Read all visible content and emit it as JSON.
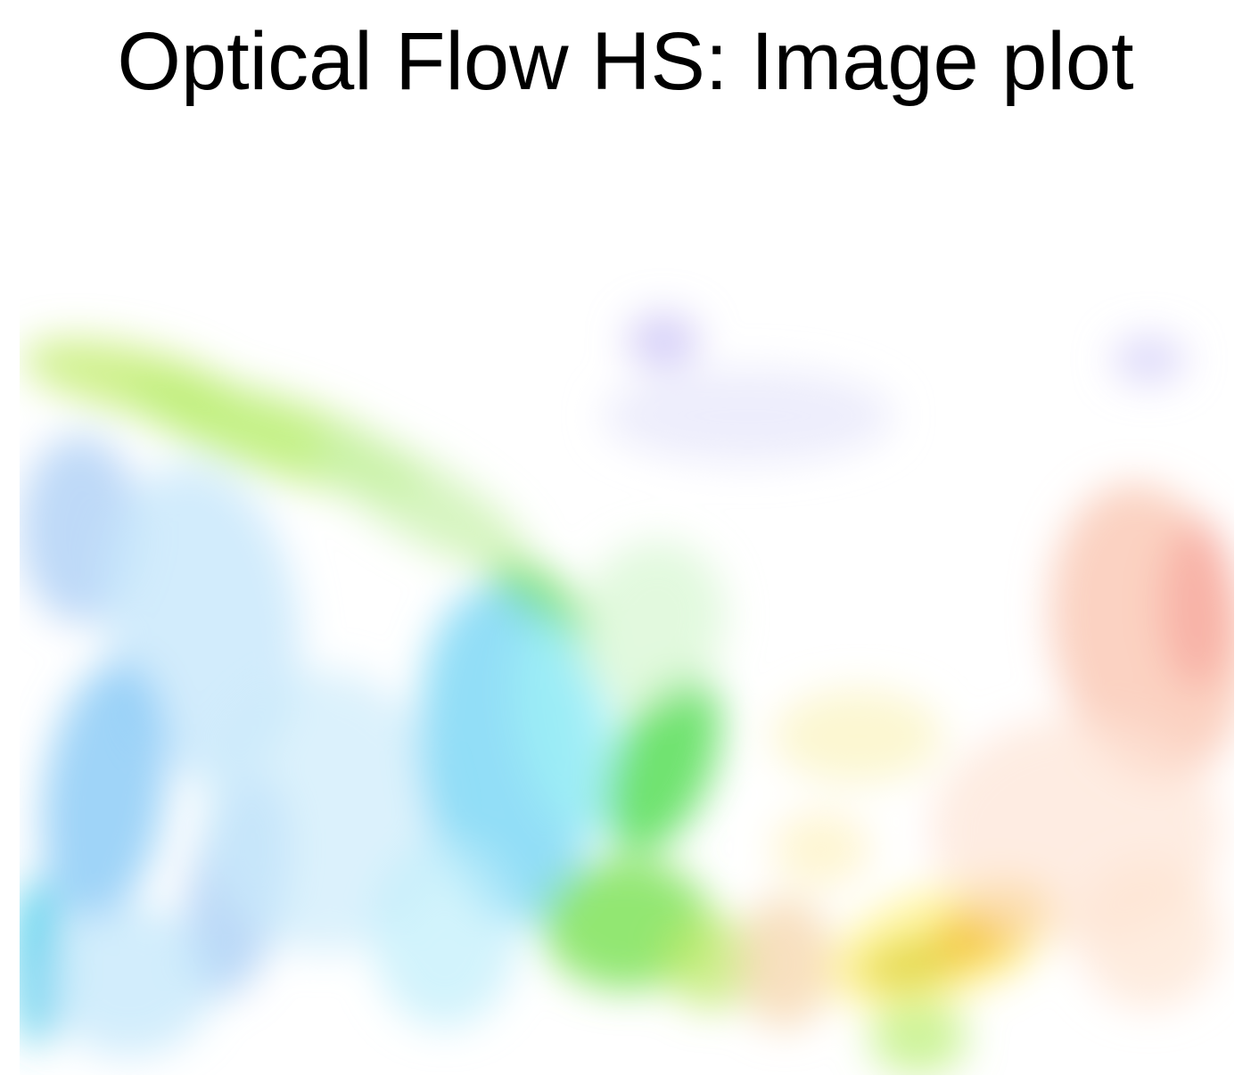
{
  "chart_data": {
    "type": "heatmap",
    "title": "Optical Flow HS: Image plot",
    "xlabel": "",
    "ylabel": "",
    "colormap": "flow-color-wheel",
    "axes_visible": false,
    "grid": false,
    "blobs": [
      {
        "cx": 0.09,
        "cy": 0.26,
        "rx": 0.09,
        "ry": 0.035,
        "color": "#c8ef7a",
        "opacity": 0.85,
        "angle": 12
      },
      {
        "cx": 0.21,
        "cy": 0.32,
        "rx": 0.13,
        "ry": 0.04,
        "color": "#bff07a",
        "opacity": 0.9,
        "angle": 18
      },
      {
        "cx": 0.33,
        "cy": 0.39,
        "rx": 0.1,
        "ry": 0.04,
        "color": "#ccf3b0",
        "opacity": 0.8,
        "angle": 30
      },
      {
        "cx": 0.43,
        "cy": 0.5,
        "rx": 0.05,
        "ry": 0.03,
        "color": "#78e060",
        "opacity": 0.9,
        "angle": 40
      },
      {
        "cx": 0.05,
        "cy": 0.42,
        "rx": 0.05,
        "ry": 0.1,
        "color": "#a8ccf6",
        "opacity": 0.75,
        "angle": 0
      },
      {
        "cx": 0.15,
        "cy": 0.52,
        "rx": 0.08,
        "ry": 0.17,
        "color": "#c7e7fb",
        "opacity": 0.8,
        "angle": -8
      },
      {
        "cx": 0.07,
        "cy": 0.7,
        "rx": 0.05,
        "ry": 0.14,
        "color": "#7ec6f5",
        "opacity": 0.75,
        "angle": 8
      },
      {
        "cx": 0.18,
        "cy": 0.8,
        "rx": 0.04,
        "ry": 0.12,
        "color": "#9ec7f4",
        "opacity": 0.7,
        "angle": 12
      },
      {
        "cx": 0.25,
        "cy": 0.72,
        "rx": 0.1,
        "ry": 0.15,
        "color": "#ccebfb",
        "opacity": 0.7,
        "angle": 0
      },
      {
        "cx": 0.015,
        "cy": 0.88,
        "rx": 0.02,
        "ry": 0.09,
        "color": "#38c8ea",
        "opacity": 0.8,
        "angle": 0
      },
      {
        "cx": 0.09,
        "cy": 0.9,
        "rx": 0.07,
        "ry": 0.08,
        "color": "#bfe6fb",
        "opacity": 0.7,
        "angle": 0
      },
      {
        "cx": 0.4,
        "cy": 0.66,
        "rx": 0.07,
        "ry": 0.18,
        "color": "#7fd8f6",
        "opacity": 0.85,
        "angle": -6
      },
      {
        "cx": 0.45,
        "cy": 0.63,
        "rx": 0.04,
        "ry": 0.12,
        "color": "#9ff0f6",
        "opacity": 0.8,
        "angle": -12
      },
      {
        "cx": 0.35,
        "cy": 0.85,
        "rx": 0.06,
        "ry": 0.1,
        "color": "#bfeefb",
        "opacity": 0.7,
        "angle": 0
      },
      {
        "cx": 0.53,
        "cy": 0.67,
        "rx": 0.04,
        "ry": 0.1,
        "color": "#60e060",
        "opacity": 0.9,
        "angle": 22
      },
      {
        "cx": 0.5,
        "cy": 0.84,
        "rx": 0.07,
        "ry": 0.07,
        "color": "#7fe35a",
        "opacity": 0.85,
        "angle": 0
      },
      {
        "cx": 0.57,
        "cy": 0.88,
        "rx": 0.04,
        "ry": 0.05,
        "color": "#bfe96a",
        "opacity": 0.75,
        "angle": 0
      },
      {
        "cx": 0.52,
        "cy": 0.52,
        "rx": 0.06,
        "ry": 0.09,
        "color": "#d6f6d0",
        "opacity": 0.7,
        "angle": 20
      },
      {
        "cx": 0.69,
        "cy": 0.64,
        "rx": 0.07,
        "ry": 0.05,
        "color": "#fbf5c6",
        "opacity": 0.8,
        "angle": 0
      },
      {
        "cx": 0.63,
        "cy": 0.88,
        "rx": 0.04,
        "ry": 0.07,
        "color": "#f6d8b0",
        "opacity": 0.8,
        "angle": 0
      },
      {
        "cx": 0.74,
        "cy": 0.88,
        "rx": 0.05,
        "ry": 0.025,
        "color": "#b8b016",
        "opacity": 0.95,
        "angle": -12
      },
      {
        "cx": 0.8,
        "cy": 0.84,
        "rx": 0.05,
        "ry": 0.035,
        "color": "#e98a12",
        "opacity": 0.9,
        "angle": -30
      },
      {
        "cx": 0.76,
        "cy": 0.86,
        "rx": 0.1,
        "ry": 0.06,
        "color": "#fff06a",
        "opacity": 0.6,
        "angle": -18
      },
      {
        "cx": 0.74,
        "cy": 0.96,
        "rx": 0.04,
        "ry": 0.04,
        "color": "#b8ef70",
        "opacity": 0.7,
        "angle": 0
      },
      {
        "cx": 0.93,
        "cy": 0.53,
        "rx": 0.08,
        "ry": 0.16,
        "color": "#f9c3ae",
        "opacity": 0.75,
        "angle": -10
      },
      {
        "cx": 0.97,
        "cy": 0.5,
        "rx": 0.03,
        "ry": 0.09,
        "color": "#f7a59a",
        "opacity": 0.7,
        "angle": 0
      },
      {
        "cx": 0.87,
        "cy": 0.74,
        "rx": 0.12,
        "ry": 0.12,
        "color": "#fde4d6",
        "opacity": 0.7,
        "angle": 0
      },
      {
        "cx": 0.93,
        "cy": 0.85,
        "rx": 0.06,
        "ry": 0.08,
        "color": "#fde4d2",
        "opacity": 0.7,
        "angle": 0
      },
      {
        "cx": 0.53,
        "cy": 0.22,
        "rx": 0.03,
        "ry": 0.03,
        "color": "#c8c0f5",
        "opacity": 0.75,
        "angle": 0
      },
      {
        "cx": 0.93,
        "cy": 0.24,
        "rx": 0.03,
        "ry": 0.025,
        "color": "#d2cdf8",
        "opacity": 0.75,
        "angle": 0
      },
      {
        "cx": 0.6,
        "cy": 0.3,
        "rx": 0.12,
        "ry": 0.05,
        "color": "#e6e6fb",
        "opacity": 0.7,
        "angle": 0
      },
      {
        "cx": 0.66,
        "cy": 0.76,
        "rx": 0.04,
        "ry": 0.04,
        "color": "#fdf2c0",
        "opacity": 0.7,
        "angle": 0
      }
    ]
  }
}
